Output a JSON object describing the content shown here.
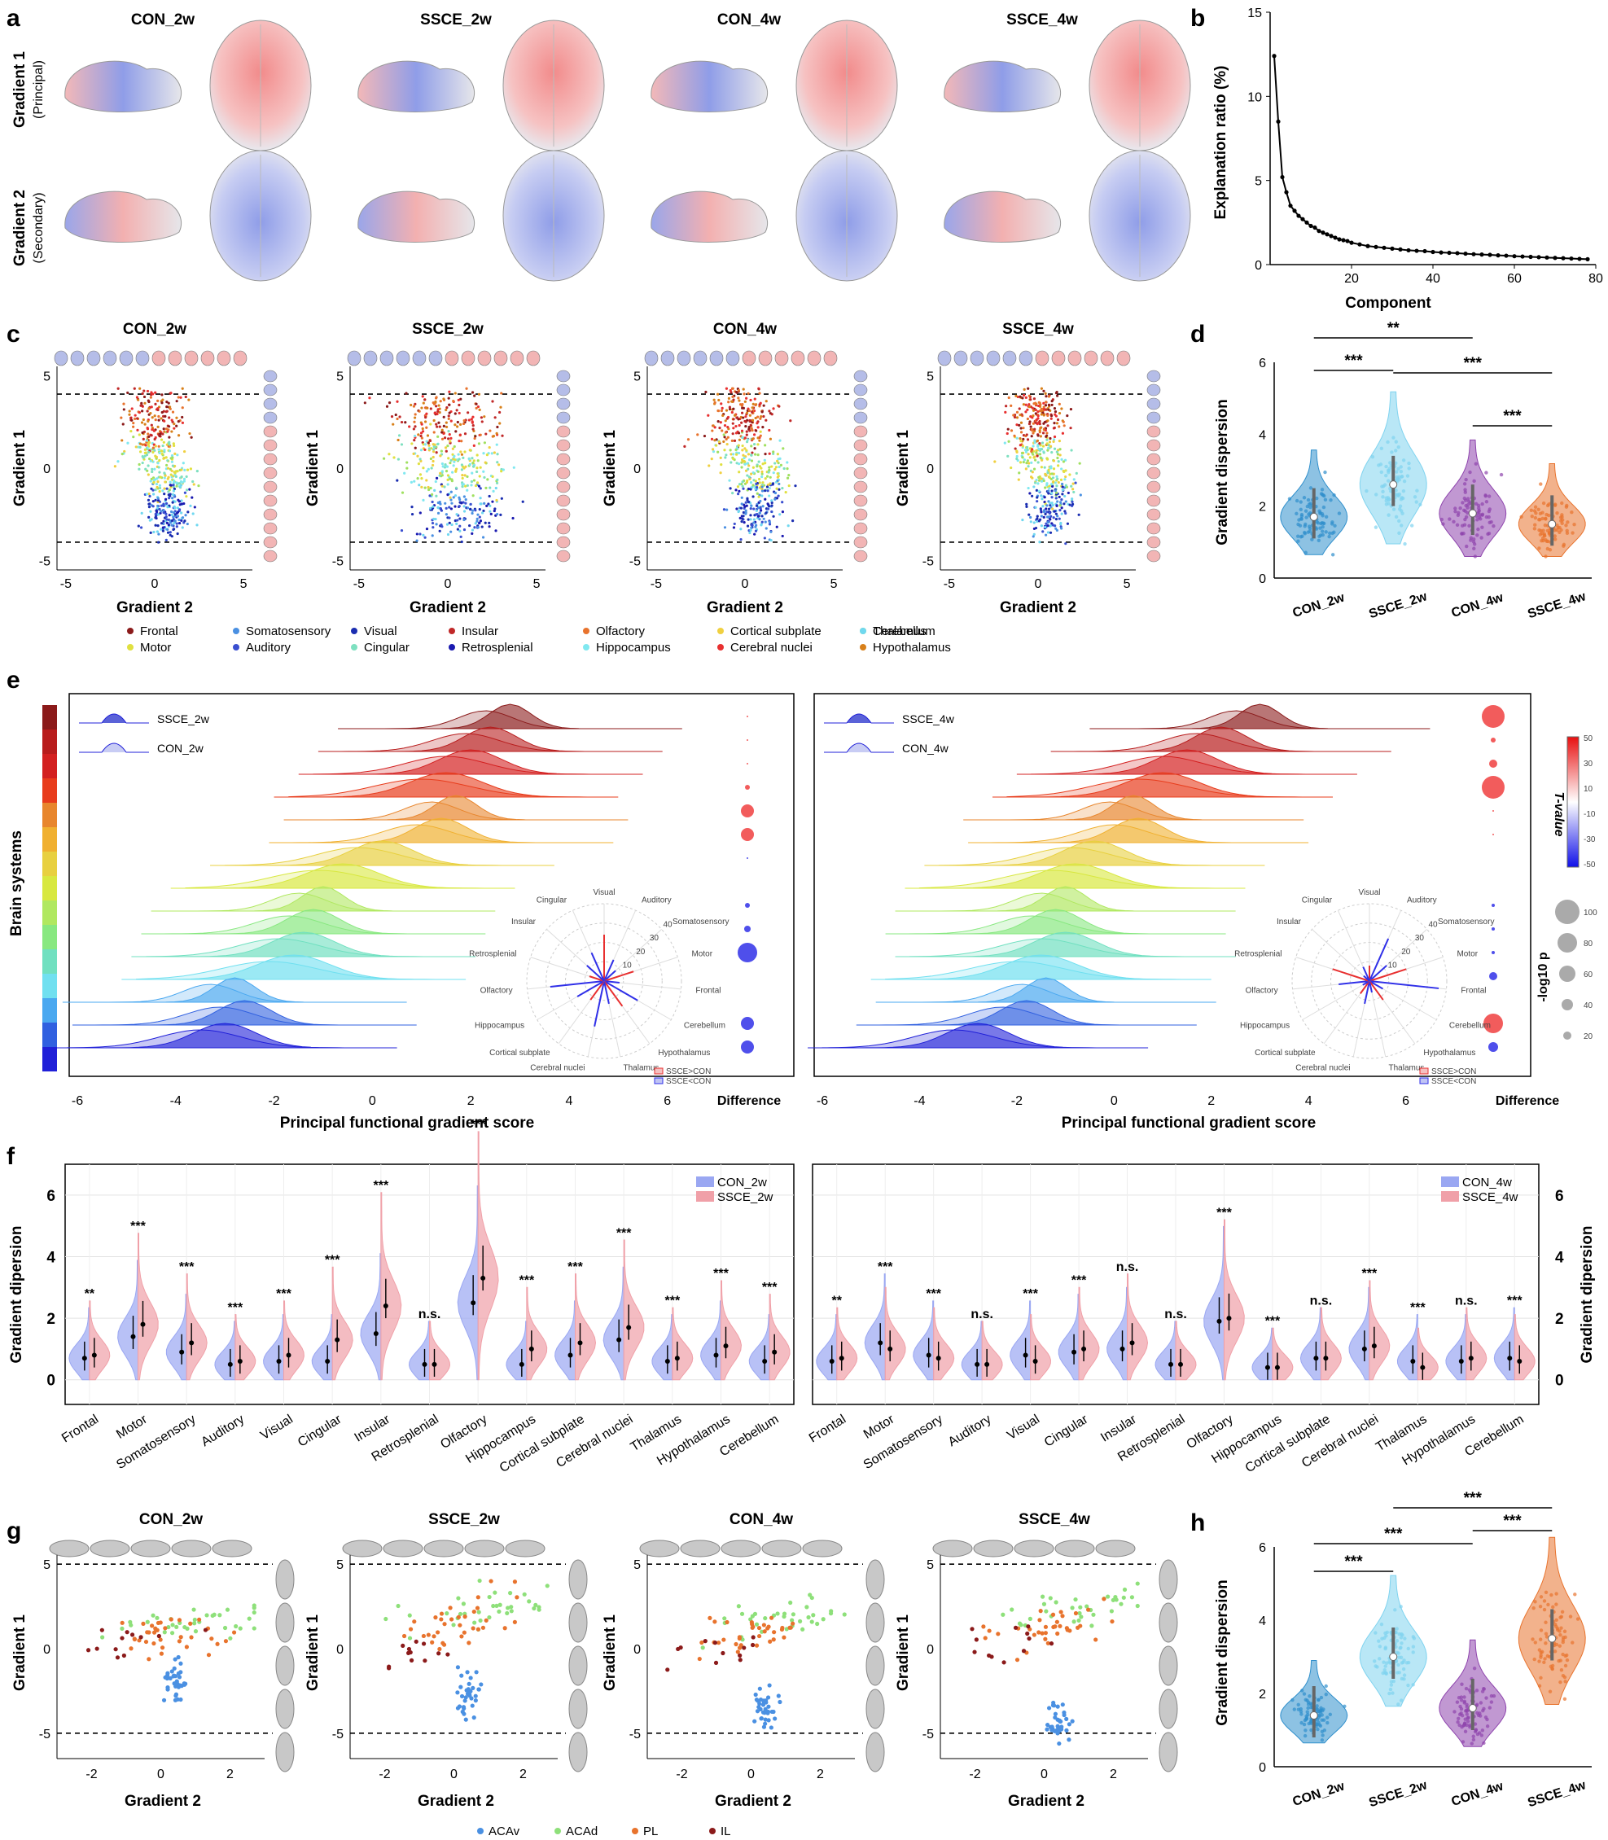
{
  "panel_labels": {
    "a": "a",
    "b": "b",
    "c": "c",
    "d": "d",
    "e": "e",
    "f": "f",
    "g": "g",
    "h": "h"
  },
  "groups": [
    "CON_2w",
    "SSCE_2w",
    "CON_4w",
    "SSCE_4w"
  ],
  "panel_a": {
    "row1_main": "Gradient 1",
    "row1_sub": "(Principal)",
    "row2_main": "Gradient 2",
    "row2_sub": "(Secondary)"
  },
  "panel_c": {
    "xlabel": "Gradient 2",
    "ylabel": "Gradient 1",
    "yticks": [
      "5",
      "0",
      "-5"
    ],
    "xticks": [
      "-5",
      "0",
      "5"
    ]
  },
  "panel_e": {
    "ylabel": "Brain systems",
    "xlabel": "Principal functional gradient score",
    "xticks": [
      "-6",
      "-4",
      "-2",
      "0",
      "2",
      "4",
      "6"
    ],
    "diff_label": "Difference",
    "legend_left": [
      "SSCE_2w",
      "CON_2w"
    ],
    "legend_right": [
      "SSCE_4w",
      "CON_4w"
    ],
    "cbar_title": "T-value",
    "cbar_ticks": [
      "50",
      "30",
      "10",
      "-10",
      "-30",
      "-50"
    ],
    "size_title": "-log10 p",
    "size_ticks": [
      "100",
      "80",
      "60",
      "40",
      "20"
    ],
    "radar_labels": [
      "Visual",
      "Auditory",
      "Somatosensory",
      "Motor",
      "Frontal",
      "Cerebellum",
      "Hypothalamus",
      "Thalamus",
      "Cerebral nuclei",
      "Cortical subplate",
      "Hippocampus",
      "Olfactory",
      "Retrosplenial",
      "Insular",
      "Cingular"
    ],
    "radar_rings": [
      "10",
      "20",
      "30",
      "40"
    ],
    "radar_legend": [
      "SSCE>CON",
      "SSCE<CON"
    ]
  },
  "panel_f": {
    "ylabel_left": "Gradient dipersion",
    "ylabel_right": "Gradient dipersion",
    "yticks": [
      "6",
      "4",
      "2",
      "0"
    ],
    "legend_left": [
      "CON_2w",
      "SSCE_2w"
    ],
    "legend_right": [
      "CON_4w",
      "SSCE_4w"
    ],
    "sig_left": [
      "**",
      "***",
      "***",
      "***",
      "***",
      "***",
      "***",
      "n.s.",
      "***",
      "***",
      "***",
      "***",
      "***",
      "***",
      "***"
    ],
    "sig_right": [
      "**",
      "***",
      "***",
      "n.s.",
      "***",
      "***",
      "n.s.",
      "n.s.",
      "***",
      "***",
      "n.s.",
      "***",
      "***",
      "n.s.",
      "***"
    ]
  },
  "panel_g": {
    "xlabel": "Gradient 2",
    "ylabel": "Gradient 1",
    "yticks": [
      "5",
      "0",
      "-5"
    ],
    "xticks": [
      "-2",
      "0",
      "2"
    ],
    "legend": [
      "ACAv",
      "ACAd",
      "PL",
      "IL"
    ]
  },
  "colors": {
    "con": "#9aa7f2",
    "ssce": "#f0a0a8",
    "v1": "#2f8fcc",
    "v2": "#7fd3ef",
    "v3": "#8e44ad",
    "v4": "#e8732d"
  },
  "chart_data": [
    {
      "id": "b",
      "type": "line",
      "title": "",
      "xlabel": "Component",
      "ylabel": "Explanation ratio (%)",
      "xticks": [
        "20",
        "40",
        "60",
        "80"
      ],
      "yticks": [
        "15",
        "10",
        "5",
        "0"
      ],
      "xlim": [
        0,
        80
      ],
      "ylim": [
        0,
        15
      ],
      "x": [
        1,
        2,
        3,
        4,
        5,
        6,
        7,
        8,
        9,
        10,
        11,
        12,
        13,
        14,
        15,
        16,
        17,
        18,
        19,
        20,
        22,
        24,
        26,
        28,
        30,
        32,
        34,
        36,
        38,
        40,
        42,
        44,
        46,
        48,
        50,
        52,
        54,
        56,
        58,
        60,
        62,
        64,
        66,
        68,
        70,
        72,
        74,
        76,
        78
      ],
      "values": [
        12.4,
        8.5,
        5.2,
        4.3,
        3.5,
        3.2,
        2.9,
        2.7,
        2.5,
        2.3,
        2.2,
        2.0,
        1.9,
        1.8,
        1.7,
        1.6,
        1.5,
        1.45,
        1.4,
        1.3,
        1.2,
        1.1,
        1.05,
        1.0,
        0.95,
        0.9,
        0.85,
        0.82,
        0.8,
        0.75,
        0.72,
        0.7,
        0.68,
        0.65,
        0.62,
        0.6,
        0.58,
        0.55,
        0.53,
        0.5,
        0.48,
        0.46,
        0.44,
        0.42,
        0.4,
        0.38,
        0.36,
        0.34,
        0.32
      ]
    },
    {
      "id": "d",
      "type": "violin",
      "ylabel": "Gradient dispersion",
      "categories": [
        "CON_2w",
        "SSCE_2w",
        "CON_4w",
        "SSCE_4w"
      ],
      "medians": [
        1.7,
        2.6,
        1.8,
        1.5
      ],
      "yticks": [
        "6",
        "4",
        "2",
        "0"
      ],
      "ylim": [
        0,
        6
      ],
      "significance": [
        "**",
        "***",
        "***",
        "***"
      ]
    },
    {
      "id": "h",
      "type": "violin",
      "ylabel": "Gradient dispersion",
      "categories": [
        "CON_2w",
        "SSCE_2w",
        "CON_4w",
        "SSCE_4w"
      ],
      "medians": [
        1.4,
        3.0,
        1.6,
        3.5
      ],
      "yticks": [
        "6",
        "4",
        "2",
        "0"
      ],
      "ylim": [
        0,
        6
      ],
      "significance": [
        "***",
        "***",
        "***",
        "***"
      ]
    },
    {
      "id": "f",
      "type": "split-violin",
      "categories": [
        "Frontal",
        "Motor",
        "Somatosensory",
        "Auditory",
        "Visual",
        "Cingular",
        "Insular",
        "Retrosplenial",
        "Olfactory",
        "Hippocampus",
        "Cortical subplate",
        "Cerebral nuclei",
        "Thalamus",
        "Hypothalamus",
        "Cerebellum"
      ],
      "series": [
        {
          "name": "CON_2w",
          "values": [
            0.7,
            1.4,
            0.9,
            0.5,
            0.6,
            0.6,
            1.5,
            0.5,
            2.5,
            0.5,
            0.8,
            1.3,
            0.6,
            0.8,
            0.6
          ]
        },
        {
          "name": "SSCE_2w",
          "values": [
            0.8,
            1.8,
            1.2,
            0.6,
            0.8,
            1.3,
            2.4,
            0.5,
            3.3,
            1.0,
            1.2,
            1.7,
            0.7,
            1.1,
            0.9
          ]
        },
        {
          "name": "CON_4w",
          "values": [
            0.6,
            1.2,
            0.8,
            0.5,
            0.8,
            0.9,
            1.0,
            0.5,
            1.9,
            0.4,
            0.7,
            1.0,
            0.6,
            0.6,
            0.7
          ]
        },
        {
          "name": "SSCE_4w",
          "values": [
            0.7,
            1.0,
            0.7,
            0.5,
            0.6,
            1.0,
            1.2,
            0.5,
            2.0,
            0.4,
            0.7,
            1.1,
            0.4,
            0.7,
            0.6
          ]
        }
      ]
    }
  ],
  "legend_c": [
    [
      "Frontal",
      "#8b1a1a"
    ],
    [
      "Motor",
      "#e0e040"
    ],
    [
      "Somatosensory",
      "#4a90e2"
    ],
    [
      "Auditory",
      "#3a4fd0"
    ],
    [
      "Visual",
      "#1a2db0"
    ],
    [
      "Cingular",
      "#7ee0c0"
    ],
    [
      "Insular",
      "#c02828"
    ],
    [
      "Retrosplenial",
      "#1a1ab0"
    ],
    [
      "Olfactory",
      "#e8732d"
    ],
    [
      "Hippocampus",
      "#80e8f0"
    ],
    [
      "Cortical subplate",
      "#f0d040"
    ],
    [
      "Cerebral nuclei",
      "#e83030"
    ],
    [
      "Thalamus",
      "#a0e060"
    ],
    [
      "Hypothalamus",
      "#d8801a"
    ],
    [
      "Cerebellum",
      "#70d8f0"
    ]
  ]
}
